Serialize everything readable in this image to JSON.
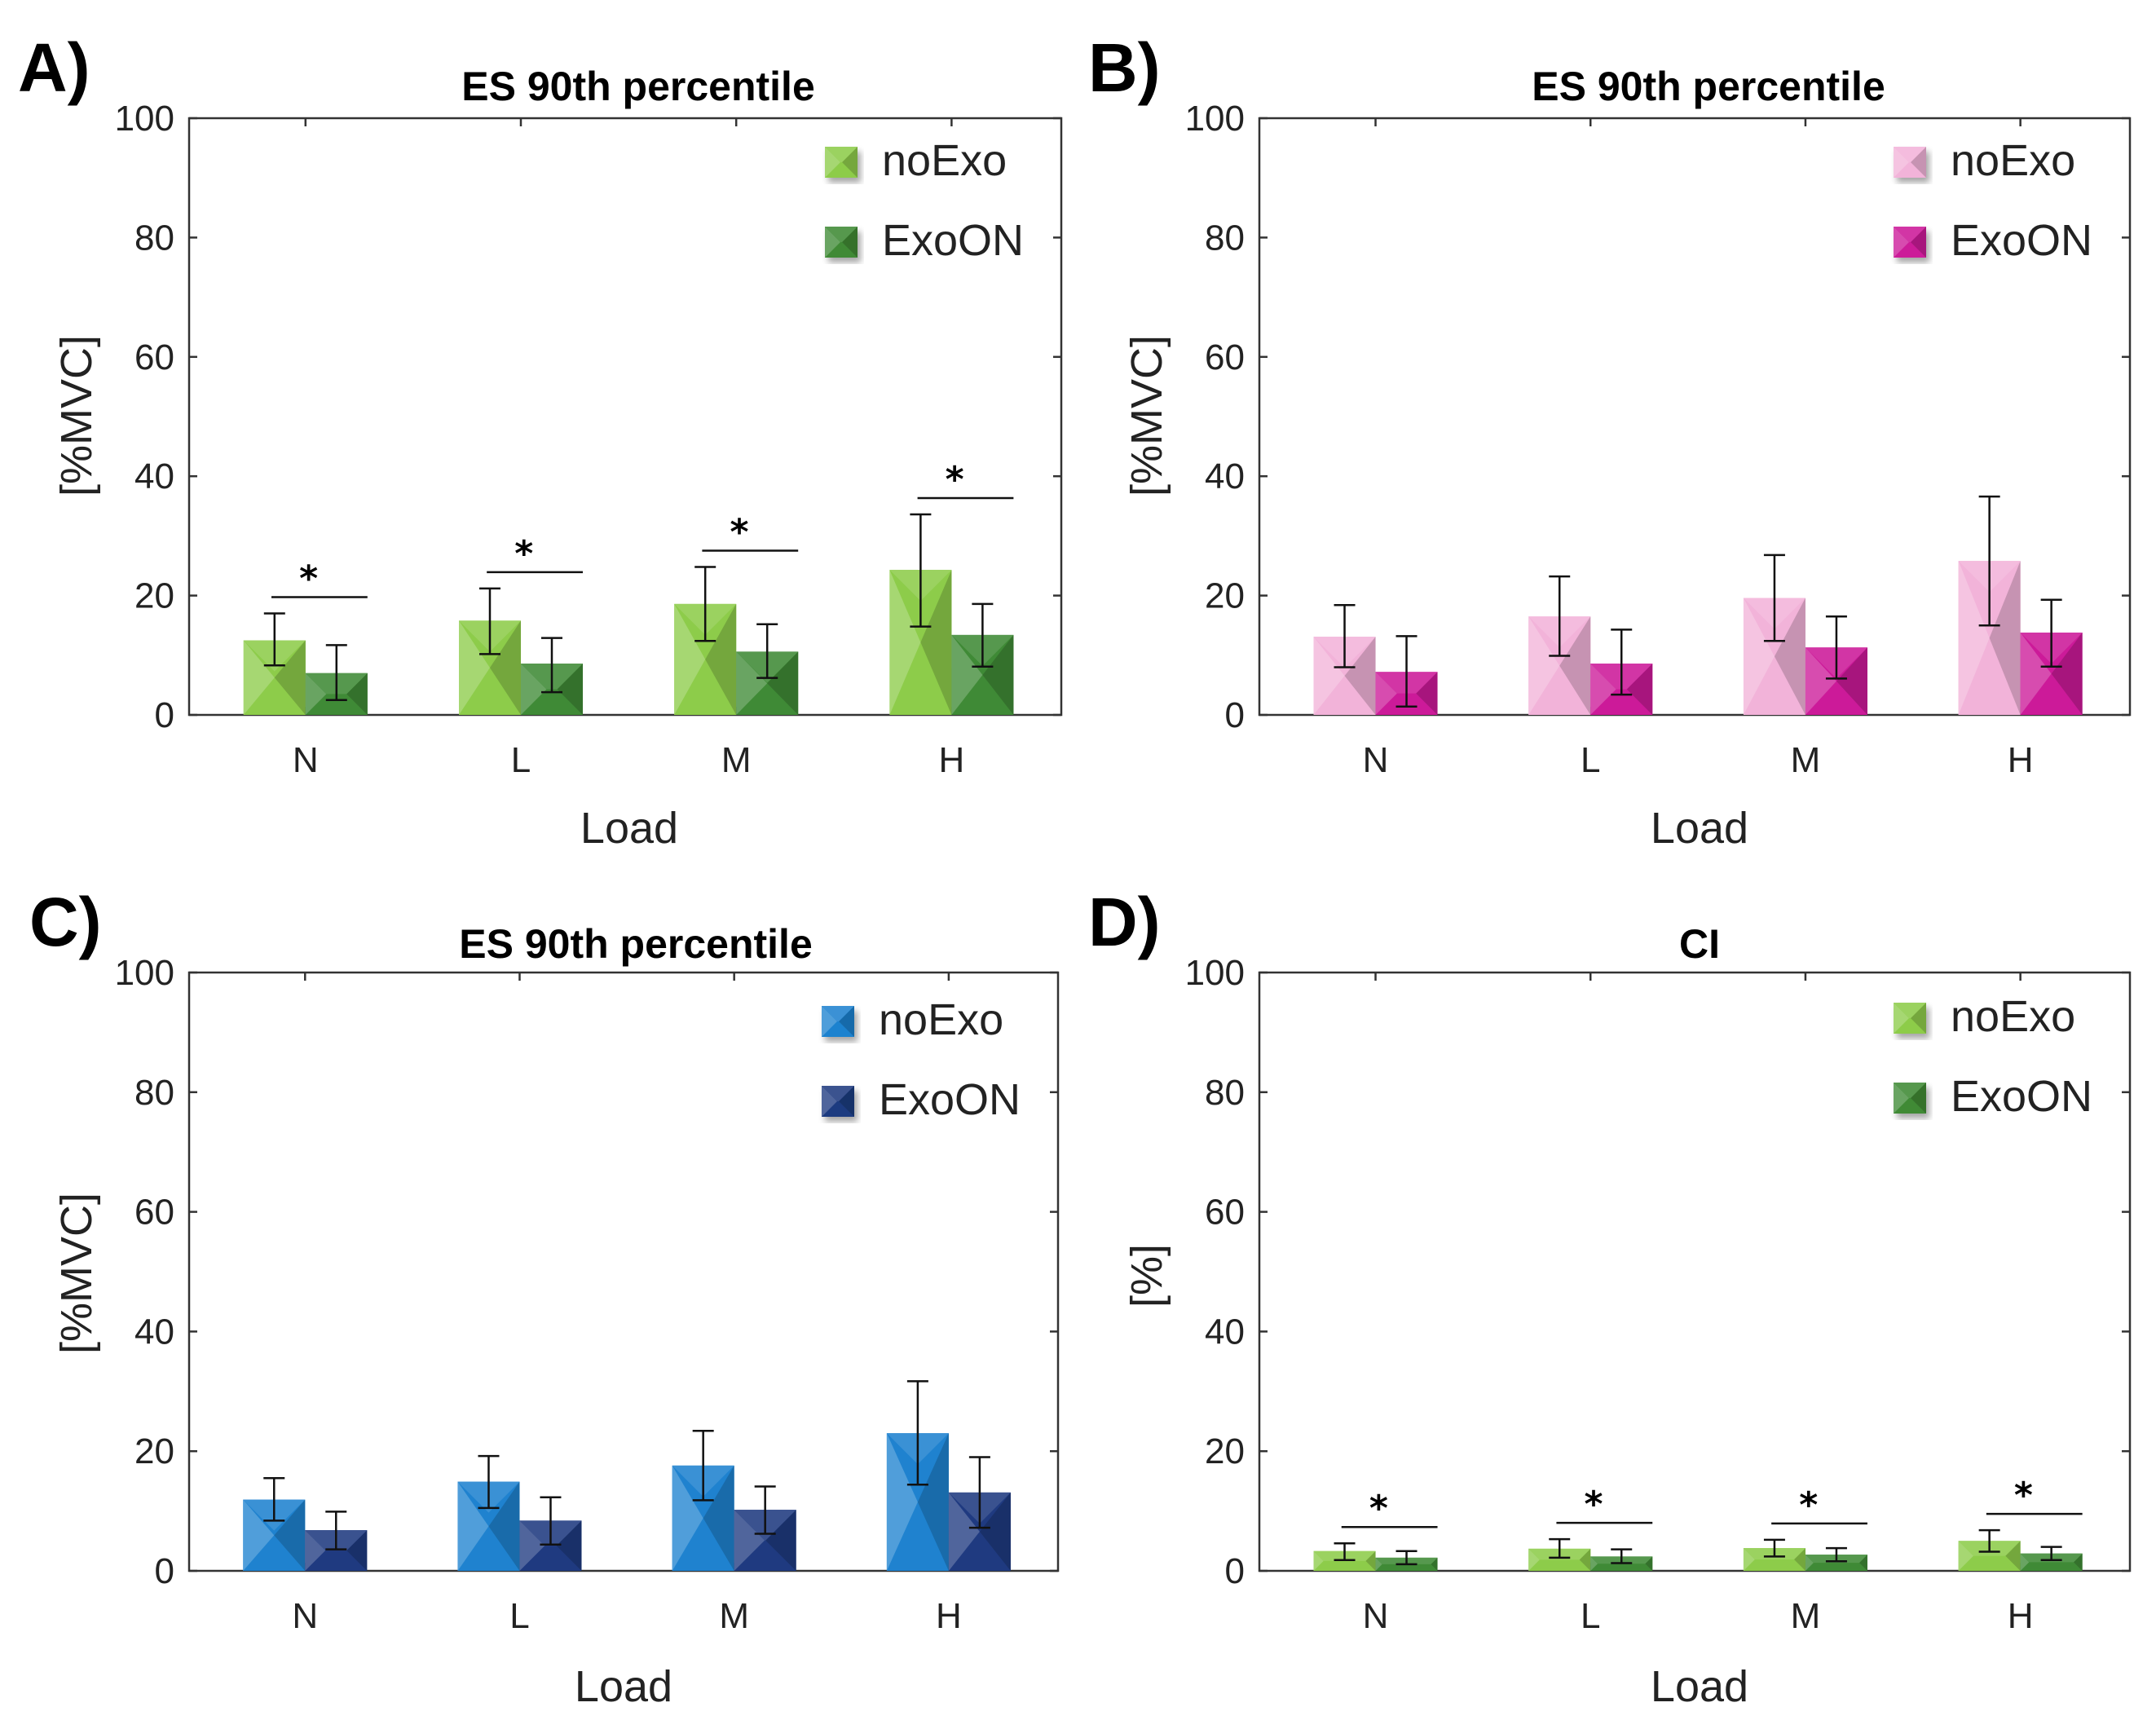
{
  "chart_data": [
    {
      "id": "A",
      "panel_label": "A)",
      "type": "bar",
      "title": "ES 90th percentile",
      "xlabel": "Load",
      "ylabel": "[%MVC]",
      "ylim": [
        0,
        100
      ],
      "yticks": [
        0,
        20,
        40,
        60,
        80,
        100
      ],
      "categories": [
        "N",
        "L",
        "M",
        "H"
      ],
      "legend_position": "top-right",
      "series": [
        {
          "name": "noExo",
          "color": "#8dcc4a",
          "values": [
            12.5,
            15.8,
            18.6,
            24.3
          ],
          "err_low": [
            8.3,
            10.2,
            12.4,
            14.8
          ],
          "err_high": [
            17.0,
            21.2,
            24.8,
            33.6
          ]
        },
        {
          "name": "ExoON",
          "color": "#3f8a36",
          "values": [
            7.0,
            8.6,
            10.6,
            13.4
          ],
          "err_low": [
            2.5,
            3.8,
            6.2,
            8.1
          ],
          "err_high": [
            11.7,
            12.9,
            15.2,
            18.6
          ]
        }
      ],
      "significance": [
        true,
        true,
        true,
        true
      ],
      "significance_label": "*"
    },
    {
      "id": "B",
      "panel_label": "B)",
      "type": "bar",
      "title": "ES 90th percentile",
      "xlabel": "Load",
      "ylabel": "[%MVC]",
      "ylim": [
        0,
        100
      ],
      "yticks": [
        0,
        20,
        40,
        60,
        80,
        100
      ],
      "categories": [
        "N",
        "L",
        "M",
        "H"
      ],
      "legend_position": "top-right",
      "series": [
        {
          "name": "noExo",
          "color": "#f2b3d9",
          "values": [
            13.1,
            16.5,
            19.6,
            25.8
          ],
          "err_low": [
            8.0,
            9.9,
            12.4,
            15.0
          ],
          "err_high": [
            18.4,
            23.2,
            26.8,
            36.6
          ]
        },
        {
          "name": "ExoON",
          "color": "#cc1a99",
          "values": [
            7.2,
            8.6,
            11.3,
            13.8
          ],
          "err_low": [
            1.4,
            3.4,
            6.1,
            8.1
          ],
          "err_high": [
            13.2,
            14.3,
            16.5,
            19.3
          ]
        }
      ],
      "significance": [
        false,
        false,
        false,
        false
      ],
      "significance_label": "*"
    },
    {
      "id": "C",
      "panel_label": "C)",
      "type": "bar",
      "title": "ES 90th percentile",
      "xlabel": "Load",
      "ylabel": "[%MVC]",
      "ylim": [
        0,
        100
      ],
      "yticks": [
        0,
        20,
        40,
        60,
        80,
        100
      ],
      "categories": [
        "N",
        "L",
        "M",
        "H"
      ],
      "legend_position": "top-right",
      "series": [
        {
          "name": "noExo",
          "color": "#1f82cf",
          "values": [
            11.9,
            14.9,
            17.6,
            23.0
          ],
          "err_low": [
            8.4,
            10.5,
            11.8,
            14.4
          ],
          "err_high": [
            15.5,
            19.2,
            23.4,
            31.7
          ]
        },
        {
          "name": "ExoON",
          "color": "#1f3a80",
          "values": [
            6.8,
            8.4,
            10.2,
            13.1
          ],
          "err_low": [
            3.6,
            4.4,
            6.2,
            7.2
          ],
          "err_high": [
            9.9,
            12.3,
            14.1,
            19.0
          ]
        }
      ],
      "significance": [
        false,
        false,
        false,
        false
      ],
      "significance_label": "*"
    },
    {
      "id": "D",
      "panel_label": "D)",
      "type": "bar",
      "title": "CI",
      "xlabel": "Load",
      "ylabel": "[%]",
      "ylim": [
        0,
        100
      ],
      "yticks": [
        0,
        20,
        40,
        60,
        80,
        100
      ],
      "categories": [
        "N",
        "L",
        "M",
        "H"
      ],
      "legend_position": "top-right",
      "series": [
        {
          "name": "noExo",
          "color": "#8dcc4a",
          "values": [
            3.3,
            3.7,
            3.8,
            5.0
          ],
          "err_low": [
            1.8,
            2.2,
            2.4,
            3.2
          ],
          "err_high": [
            4.6,
            5.3,
            5.2,
            6.8
          ]
        },
        {
          "name": "ExoON",
          "color": "#3f8a36",
          "values": [
            2.2,
            2.4,
            2.7,
            2.9
          ],
          "err_low": [
            1.1,
            1.3,
            1.6,
            1.8
          ],
          "err_high": [
            3.3,
            3.6,
            3.8,
            4.0
          ]
        }
      ],
      "significance": [
        true,
        true,
        true,
        true
      ],
      "significance_label": "*"
    }
  ]
}
